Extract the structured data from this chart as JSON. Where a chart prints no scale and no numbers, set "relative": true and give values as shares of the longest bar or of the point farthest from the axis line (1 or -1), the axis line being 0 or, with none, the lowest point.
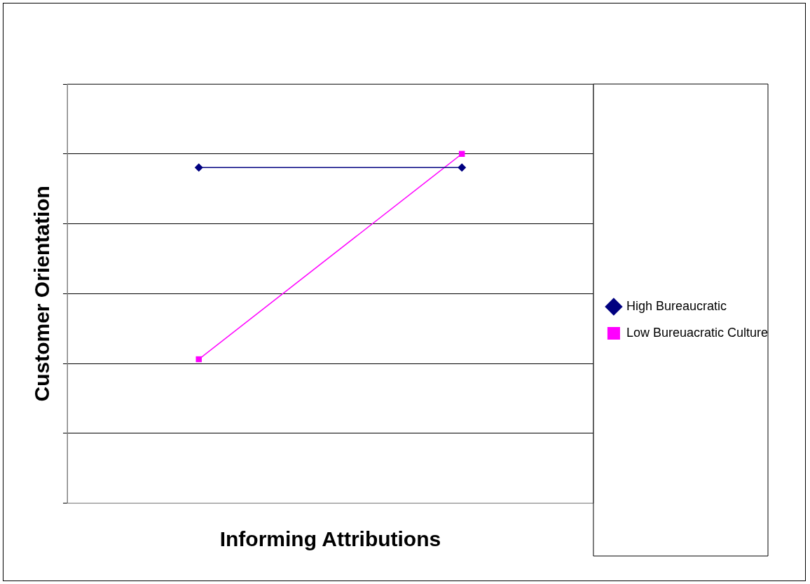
{
  "chart_data": {
    "type": "line",
    "xlabel": "Informing Attributions",
    "ylabel": "Customer Orientation",
    "categories": [
      null,
      null
    ],
    "relative": true,
    "grid": "y",
    "legend": "right",
    "series": [
      {
        "name": "High Bureaucratic",
        "color": "#000080",
        "values": [
          0.961,
          0.961
        ],
        "marker": "diamond"
      },
      {
        "name": "Low Bureuacratic Culture",
        "color": "#ff00ff",
        "values": [
          0.412,
          1
        ],
        "marker": "square"
      }
    ]
  }
}
